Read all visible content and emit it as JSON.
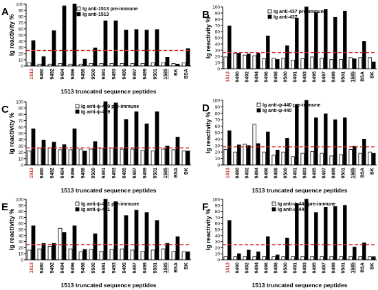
{
  "figure": {
    "panels": [
      {
        "letter": "A",
        "legend": [
          "Ig anti-1513 pre-immune",
          "Ig anti-1513"
        ]
      },
      {
        "letter": "B",
        "legend": [
          "Ig anti-437 pre-immune",
          "Ig anti-437"
        ]
      },
      {
        "letter": "C",
        "legend": [
          "Ig anti-ψ-439 pre-immune",
          "Ig anti-ψ-439"
        ]
      },
      {
        "letter": "D",
        "legend": [
          "Ig anti-ψ-440 pre-immune",
          "Ig anti-ψ-440"
        ]
      },
      {
        "letter": "E",
        "legend": [
          "Ig anti-ψ-441 pre-immune",
          "Ig anti-ψ-441"
        ]
      },
      {
        "letter": "F",
        "legend": [
          "Ig anti-ψ-442 pre-immune",
          "Ig anti-ψ-442"
        ]
      }
    ]
  },
  "chart_data": [
    {
      "type": "bar",
      "panel": "A",
      "categories": [
        "1513",
        "9490",
        "9492",
        "9494",
        "9496",
        "9498",
        "9500",
        "9491",
        "9493",
        "9495",
        "9497",
        "9499",
        "9501",
        "1585",
        "BK",
        "BSA"
      ],
      "series": [
        {
          "name": "Ig anti-1513 pre-immune",
          "values": [
            5,
            3,
            3,
            4,
            3,
            3,
            4,
            4,
            4,
            4,
            4,
            4,
            5,
            5,
            4,
            5
          ]
        },
        {
          "name": "Ig anti-1513",
          "values": [
            41,
            15,
            57,
            97,
            100,
            11,
            29,
            73,
            73,
            58,
            59,
            58,
            59,
            14,
            3,
            28
          ]
        }
      ],
      "threshold": 25,
      "ylim": [
        0,
        100
      ],
      "yticks": [
        0,
        10,
        20,
        30,
        40,
        50,
        60,
        70,
        80,
        90,
        100
      ],
      "ylabel": "Ig reactivity %",
      "xlabel": "1513 truncated sequence peptides"
    },
    {
      "type": "bar",
      "panel": "B",
      "categories": [
        "1513",
        "9490",
        "9492",
        "9494",
        "9496",
        "9498",
        "9500",
        "9491",
        "9493",
        "9495",
        "9497",
        "9499",
        "9501",
        "1585",
        "BSA",
        "BK"
      ],
      "series": [
        {
          "name": "Ig anti-437 pre-immune",
          "values": [
            19,
            25,
            22,
            21,
            16,
            17,
            17,
            14,
            16,
            19,
            17,
            15,
            15,
            18,
            18,
            18
          ]
        },
        {
          "name": "Ig anti-437",
          "values": [
            69,
            25,
            24,
            25,
            53,
            15,
            37,
            82,
            100,
            91,
            96,
            83,
            93,
            16,
            44,
            11
          ]
        }
      ],
      "threshold": 26,
      "ylim": [
        0,
        100
      ],
      "yticks": [
        0,
        10,
        20,
        30,
        40,
        50,
        60,
        70,
        80,
        90,
        100
      ],
      "ylabel": "Ig reactivity %",
      "xlabel": ""
    },
    {
      "type": "bar",
      "panel": "C",
      "categories": [
        "1513",
        "9490",
        "9492",
        "9494",
        "9496",
        "9498",
        "9500",
        "9491",
        "9493",
        "9495",
        "9497",
        "9499",
        "9501",
        "1585",
        "BSA",
        "BK"
      ],
      "series": [
        {
          "name": "Ig anti-ψ-439 pre-immune",
          "values": [
            22,
            27,
            27,
            24,
            24,
            25,
            25,
            26,
            27,
            25,
            25,
            23,
            22,
            25,
            24,
            22
          ]
        },
        {
          "name": "Ig anti-ψ-439",
          "values": [
            57,
            39,
            36,
            32,
            57,
            22,
            37,
            100,
            98,
            72,
            84,
            65,
            84,
            30,
            44,
            22
          ]
        }
      ],
      "threshold": 27,
      "ylim": [
        0,
        100
      ],
      "yticks": [
        0,
        10,
        20,
        30,
        40,
        50,
        60,
        70,
        80,
        90,
        100
      ],
      "ylabel": "Ig reactivity %",
      "xlabel": "1513 truncated sequence peptides"
    },
    {
      "type": "bar",
      "panel": "D",
      "categories": [
        "1513",
        "9490",
        "9492",
        "9494",
        "9496",
        "9498",
        "9500",
        "9491",
        "9493",
        "9495",
        "9497",
        "9499",
        "9501",
        "1585",
        "BSA",
        "BK"
      ],
      "series": [
        {
          "name": "Ig anti-ψ-440 pre-immune",
          "values": [
            24,
            20,
            32,
            63,
            20,
            15,
            20,
            13,
            18,
            21,
            18,
            14,
            16,
            24,
            18,
            20
          ]
        },
        {
          "name": "Ig anti-ψ-440",
          "values": [
            53,
            31,
            30,
            33,
            51,
            23,
            41,
            93,
            100,
            73,
            79,
            70,
            73,
            29,
            40,
            18
          ]
        }
      ],
      "threshold": 28,
      "ylim": [
        0,
        100
      ],
      "yticks": [
        0,
        10,
        20,
        30,
        40,
        50,
        60,
        70,
        80,
        90,
        100
      ],
      "ylabel": "Ig reactivity %",
      "xlabel": "1513 truncated sequence peptides"
    },
    {
      "type": "bar",
      "panel": "E",
      "categories": [
        "1513",
        "9490",
        "9492",
        "9494",
        "9496",
        "9498",
        "9500",
        "9491",
        "9493",
        "9495",
        "9497",
        "9499",
        "9501",
        "1585",
        "BSA",
        "BK"
      ],
      "series": [
        {
          "name": "Ig anti-ψ-441 pre-immune",
          "values": [
            16,
            18,
            22,
            52,
            18,
            13,
            17,
            14,
            17,
            18,
            16,
            14,
            16,
            18,
            14,
            13
          ]
        },
        {
          "name": "Ig anti-ψ-441",
          "values": [
            56,
            27,
            27,
            45,
            56,
            17,
            43,
            100,
            96,
            73,
            82,
            78,
            65,
            27,
            38,
            13
          ]
        }
      ],
      "threshold": 25,
      "ylim": [
        0,
        100
      ],
      "yticks": [
        0,
        10,
        20,
        30,
        40,
        50,
        60,
        70,
        80,
        90,
        100
      ],
      "ylabel": "Ig reactivity %",
      "xlabel": "1513 truncated sequence peptides"
    },
    {
      "type": "bar",
      "panel": "F",
      "categories": [
        "1513",
        "9490",
        "9492",
        "9494",
        "9496",
        "9498",
        "9500",
        "9491",
        "9493",
        "9495",
        "9497",
        "9499",
        "9501",
        "1585",
        "BSA",
        "BK"
      ],
      "series": [
        {
          "name": "Ig anti-ψ-442 pre-immune",
          "values": [
            5,
            5,
            5,
            5,
            5,
            5,
            5,
            5,
            5,
            5,
            5,
            5,
            5,
            5,
            5,
            5
          ]
        },
        {
          "name": "Ig anti-ψ-442",
          "values": [
            65,
            10,
            16,
            13,
            38,
            8,
            36,
            93,
            100,
            78,
            87,
            88,
            90,
            21,
            28,
            5
          ]
        }
      ],
      "threshold": 25,
      "ylim": [
        0,
        100
      ],
      "yticks": [
        0,
        10,
        20,
        30,
        40,
        50,
        60,
        70,
        80,
        90,
        100
      ],
      "ylabel": "Ig reactivity %",
      "xlabel": "1513 truncated sequence peptides"
    }
  ],
  "colors": {
    "highlight_label": "#c0392b",
    "threshold": "#e02020",
    "filled_bar": "#000000",
    "open_bar": "#ffffff"
  }
}
